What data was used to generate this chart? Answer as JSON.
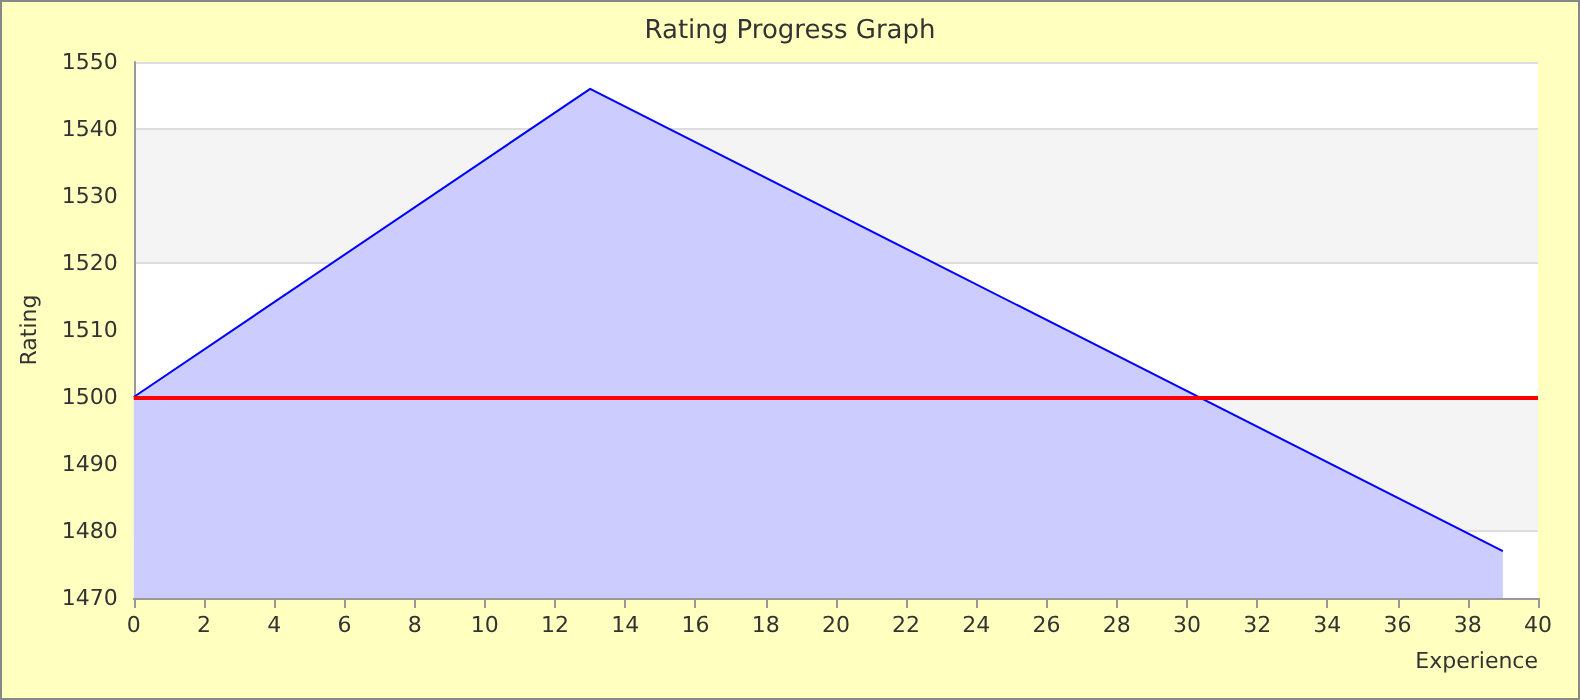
{
  "chart_data": {
    "type": "area",
    "title": "Rating Progress Graph",
    "xlabel": "Experience",
    "ylabel": "Rating",
    "x": [
      0,
      13,
      39
    ],
    "series": [
      {
        "color": "#0000ff",
        "values": [
          1500,
          1546,
          1477
        ]
      }
    ],
    "xlim": [
      0,
      40
    ],
    "xticks": [
      0,
      2,
      4,
      6,
      8,
      10,
      12,
      14,
      16,
      18,
      20,
      22,
      24,
      26,
      28,
      30,
      32,
      34,
      36,
      38,
      40
    ],
    "ylim": [
      1470,
      1550
    ],
    "yticks": [
      1470,
      1480,
      1490,
      1500,
      1510,
      1520,
      1530,
      1540,
      1550
    ],
    "ref_lines": [
      {
        "axis": "y",
        "value": 1500,
        "color": "#ff0000"
      }
    ],
    "grid": "y",
    "marker": "none"
  }
}
